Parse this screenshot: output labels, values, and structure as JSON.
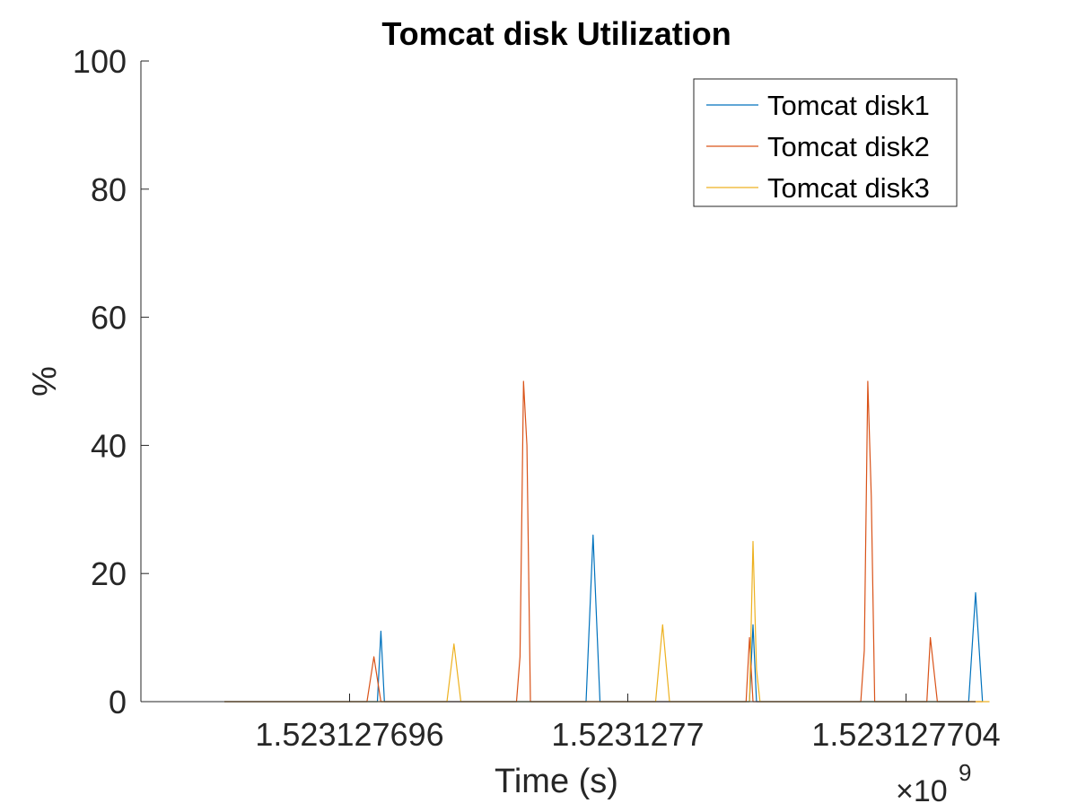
{
  "chart_data": {
    "type": "line",
    "title": "Tomcat disk Utilization",
    "xlabel": "Time (s)",
    "ylabel": "%",
    "x_exponent_label": "×10",
    "x_exponent_power": "9",
    "xlim": [
      1523127693,
      1523127705
    ],
    "ylim": [
      0,
      100
    ],
    "x_ticks": [
      1523127696,
      1523127700,
      1523127704
    ],
    "x_tick_labels": [
      "1.523127696",
      "1.5231277",
      "1.523127704"
    ],
    "y_ticks": [
      0,
      20,
      40,
      60,
      80,
      100
    ],
    "y_tick_labels": [
      "0",
      "20",
      "40",
      "60",
      "80",
      "100"
    ],
    "grid": false,
    "legend_position": "top-right",
    "colors": {
      "axis": "#262626",
      "text": "#262626",
      "title": "#000000"
    },
    "series": [
      {
        "name": "Tomcat disk1",
        "color": "#0072BD",
        "x": [
          1523127694.2,
          1523127696.4,
          1523127696.45,
          1523127696.5,
          1523127696.55,
          1523127699.4,
          1523127699.5,
          1523127699.6,
          1523127701.75,
          1523127701.8,
          1523127701.85,
          1523127701.9,
          1523127704.9,
          1523127705.0,
          1523127705.1
        ],
        "y": [
          0,
          0,
          11,
          0,
          0,
          0,
          26,
          0,
          0,
          12,
          0,
          0,
          0,
          17,
          0
        ]
      },
      {
        "name": "Tomcat disk2",
        "color": "#D95319",
        "x": [
          1523127694.2,
          1523127696.25,
          1523127696.35,
          1523127696.45,
          1523127698.4,
          1523127698.45,
          1523127698.5,
          1523127698.55,
          1523127698.6,
          1523127701.7,
          1523127701.75,
          1523127701.8,
          1523127703.35,
          1523127703.4,
          1523127703.45,
          1523127703.5,
          1523127703.55,
          1523127704.3,
          1523127704.35,
          1523127704.45,
          1523127705.1
        ],
        "y": [
          0,
          0,
          7,
          0,
          0,
          7,
          50,
          40,
          0,
          0,
          10,
          0,
          0,
          8,
          50,
          32,
          0,
          0,
          10,
          0,
          0
        ]
      },
      {
        "name": "Tomcat disk3",
        "color": "#EDB120",
        "x": [
          1523127694.2,
          1523127697.4,
          1523127697.5,
          1523127697.6,
          1523127700.4,
          1523127700.5,
          1523127700.6,
          1523127701.75,
          1523127701.8,
          1523127701.85,
          1523127701.9,
          1523127705.2
        ],
        "y": [
          0,
          0,
          9,
          0,
          0,
          12,
          0,
          0,
          25,
          5,
          0,
          0
        ]
      }
    ]
  }
}
